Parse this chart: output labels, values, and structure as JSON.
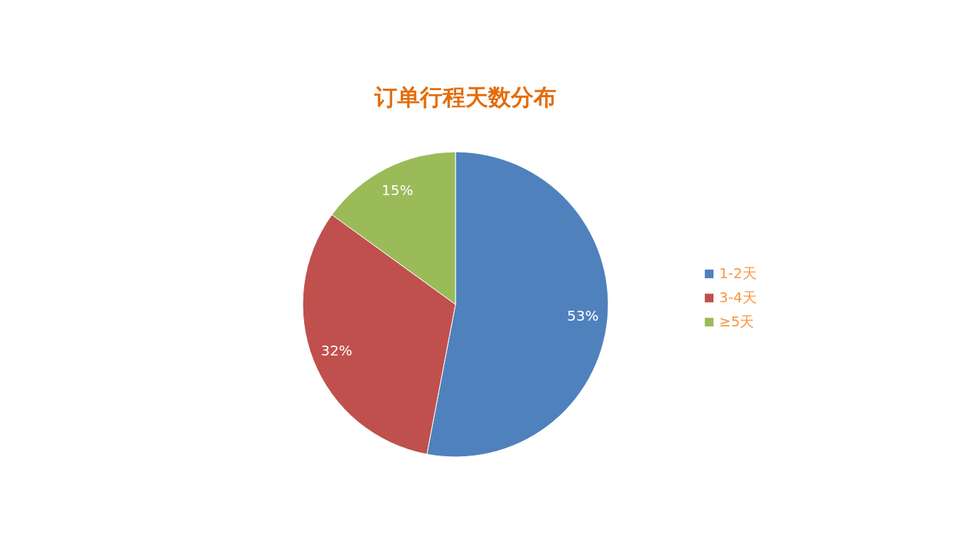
{
  "chart_data": {
    "type": "pie",
    "title": "订单行程天数分布",
    "categories": [
      "1-2天",
      "3-4天",
      "≥5天"
    ],
    "values": [
      53,
      32,
      15
    ],
    "colors": [
      "#4f81bd",
      "#c0504d",
      "#9bbb59"
    ],
    "value_labels": [
      "53%",
      "32%",
      "15%"
    ],
    "legend": "right"
  }
}
